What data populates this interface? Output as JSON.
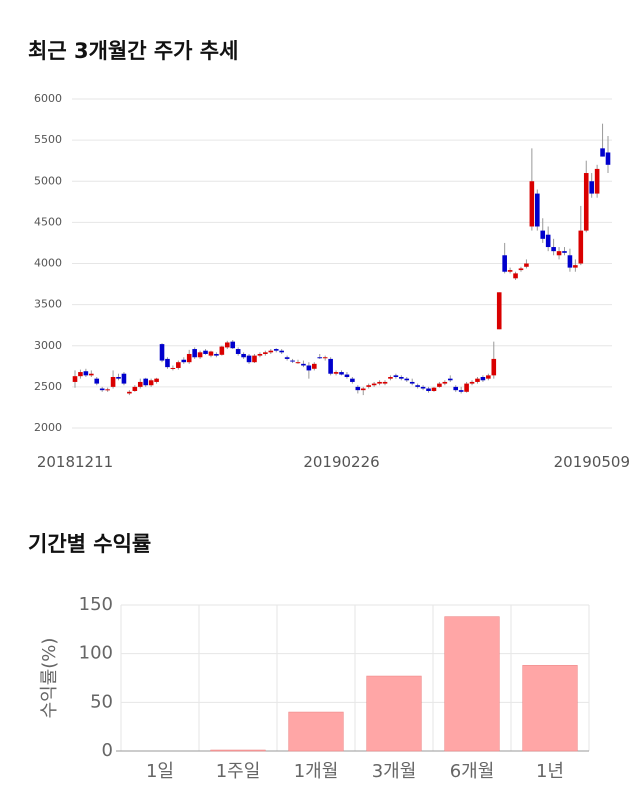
{
  "chart_data": [
    {
      "type": "candlestick",
      "title": "최근 3개월간 주가 추세",
      "categories": [
        "20181211",
        null,
        null,
        null,
        null,
        null,
        null,
        null,
        null,
        null,
        null,
        null,
        null,
        null,
        null,
        null,
        null,
        null,
        null,
        null,
        null,
        null,
        null,
        null,
        null,
        null,
        null,
        null,
        null,
        null,
        null,
        null,
        null,
        null,
        null,
        null,
        null,
        null,
        null,
        null,
        null,
        null,
        null,
        null,
        null,
        null,
        null,
        null,
        null,
        "20190226",
        null,
        null,
        null,
        null,
        null,
        null,
        null,
        null,
        null,
        null,
        null,
        null,
        null,
        null,
        null,
        null,
        null,
        null,
        null,
        null,
        null,
        null,
        null,
        null,
        null,
        null,
        null,
        null,
        null,
        null,
        null,
        null,
        null,
        null,
        null,
        null,
        null,
        null,
        null,
        null,
        null,
        null,
        null,
        null,
        null,
        null,
        null,
        null,
        "20190509"
      ],
      "open": [
        2560,
        2630,
        2690,
        2640,
        2600,
        2480,
        2460,
        2500,
        2620,
        2660,
        2420,
        2450,
        2500,
        2600,
        2520,
        2560,
        3020,
        2840,
        2720,
        2730,
        2830,
        2800,
        2960,
        2860,
        2940,
        2880,
        2900,
        2890,
        2980,
        3050,
        2960,
        2900,
        2880,
        2800,
        2880,
        2900,
        2920,
        2960,
        2940,
        2860,
        2820,
        2800,
        2780,
        2760,
        2720,
        2860,
        2850,
        2840,
        2660,
        2680,
        2650,
        2600,
        2500,
        2460,
        2500,
        2520,
        2540,
        2540,
        2600,
        2640,
        2620,
        2600,
        2560,
        2520,
        2500,
        2480,
        2450,
        2500,
        2540,
        2600,
        2500,
        2460,
        2440,
        2540,
        2560,
        2620,
        2600,
        2640,
        3200,
        4100,
        3900,
        3820,
        3920,
        3960,
        4450,
        4850,
        4400,
        4350,
        4200,
        4100,
        4150,
        4100,
        3950,
        4000,
        4400,
        5000,
        4850,
        5400,
        5350
      ],
      "high": [
        2700,
        2710,
        2720,
        2700,
        2620,
        2500,
        2490,
        2700,
        2660,
        2680,
        2460,
        2520,
        2600,
        2610,
        2600,
        2610,
        3030,
        2860,
        2760,
        2820,
        2860,
        2950,
        2980,
        2940,
        2960,
        2940,
        2920,
        3000,
        3060,
        3070,
        2980,
        2920,
        2900,
        2900,
        2920,
        2940,
        2960,
        2970,
        2960,
        2880,
        2840,
        2830,
        2820,
        2800,
        2800,
        2900,
        2880,
        2860,
        2700,
        2700,
        2680,
        2620,
        2520,
        2500,
        2540,
        2560,
        2580,
        2580,
        2640,
        2660,
        2640,
        2620,
        2600,
        2540,
        2520,
        2500,
        2500,
        2560,
        2580,
        2640,
        2520,
        2500,
        2560,
        2580,
        2620,
        2640,
        2660,
        3050,
        3650,
        4250,
        3950,
        3900,
        3960,
        4050,
        5400,
        4900,
        4550,
        4450,
        4300,
        4200,
        4200,
        4180,
        4050,
        4700,
        5250,
        5100,
        5200,
        5700,
        5550
      ],
      "low": [
        2490,
        2600,
        2620,
        2620,
        2520,
        2440,
        2440,
        2480,
        2580,
        2520,
        2400,
        2440,
        2480,
        2500,
        2500,
        2540,
        2800,
        2720,
        2700,
        2710,
        2780,
        2780,
        2840,
        2840,
        2890,
        2860,
        2860,
        2880,
        2960,
        2960,
        2880,
        2840,
        2780,
        2790,
        2860,
        2880,
        2900,
        2920,
        2900,
        2820,
        2790,
        2780,
        2740,
        2600,
        2700,
        2840,
        2820,
        2640,
        2640,
        2640,
        2600,
        2540,
        2420,
        2400,
        2480,
        2500,
        2520,
        2520,
        2580,
        2600,
        2580,
        2560,
        2520,
        2480,
        2460,
        2430,
        2440,
        2490,
        2520,
        2560,
        2440,
        2420,
        2430,
        2520,
        2540,
        2560,
        2580,
        2600,
        3200,
        3880,
        3880,
        3800,
        3900,
        3940,
        4400,
        4400,
        4250,
        4150,
        4100,
        4050,
        4100,
        3900,
        3900,
        3980,
        4380,
        4800,
        4800,
        5300,
        5100
      ],
      "close": [
        2630,
        2680,
        2640,
        2660,
        2540,
        2460,
        2470,
        2620,
        2600,
        2540,
        2440,
        2500,
        2560,
        2520,
        2580,
        2600,
        2820,
        2740,
        2730,
        2800,
        2800,
        2900,
        2860,
        2920,
        2900,
        2930,
        2880,
        2990,
        3040,
        2970,
        2900,
        2860,
        2800,
        2880,
        2900,
        2920,
        2940,
        2940,
        2920,
        2840,
        2810,
        2800,
        2760,
        2700,
        2780,
        2850,
        2860,
        2660,
        2680,
        2650,
        2620,
        2560,
        2460,
        2480,
        2520,
        2540,
        2560,
        2560,
        2620,
        2620,
        2600,
        2580,
        2540,
        2500,
        2480,
        2450,
        2490,
        2540,
        2560,
        2580,
        2460,
        2440,
        2540,
        2560,
        2600,
        2580,
        2640,
        2840,
        3650,
        3900,
        3920,
        3880,
        3940,
        4000,
        5000,
        4450,
        4300,
        4200,
        4150,
        4150,
        4130,
        3950,
        3980,
        4400,
        5100,
        4850,
        5150,
        5300,
        5200
      ],
      "up_color": "#d90000",
      "down_color": "#0000cc",
      "ylim": [
        2000,
        6000
      ],
      "yticks": [
        2000,
        2500,
        3000,
        3500,
        4000,
        4500,
        5000,
        5500,
        6000
      ],
      "grid": true
    },
    {
      "type": "bar",
      "title": "기간별 수익률",
      "y_label": "수익률(%)",
      "categories": [
        "1일",
        "1주일",
        "1개월",
        "3개월",
        "6개월",
        "1년"
      ],
      "values": [
        0,
        1,
        40,
        77,
        138,
        88
      ],
      "color": "#ffa6a6",
      "ylim": [
        0,
        150
      ],
      "yticks": [
        0,
        50,
        100,
        150
      ],
      "grid": true
    }
  ]
}
